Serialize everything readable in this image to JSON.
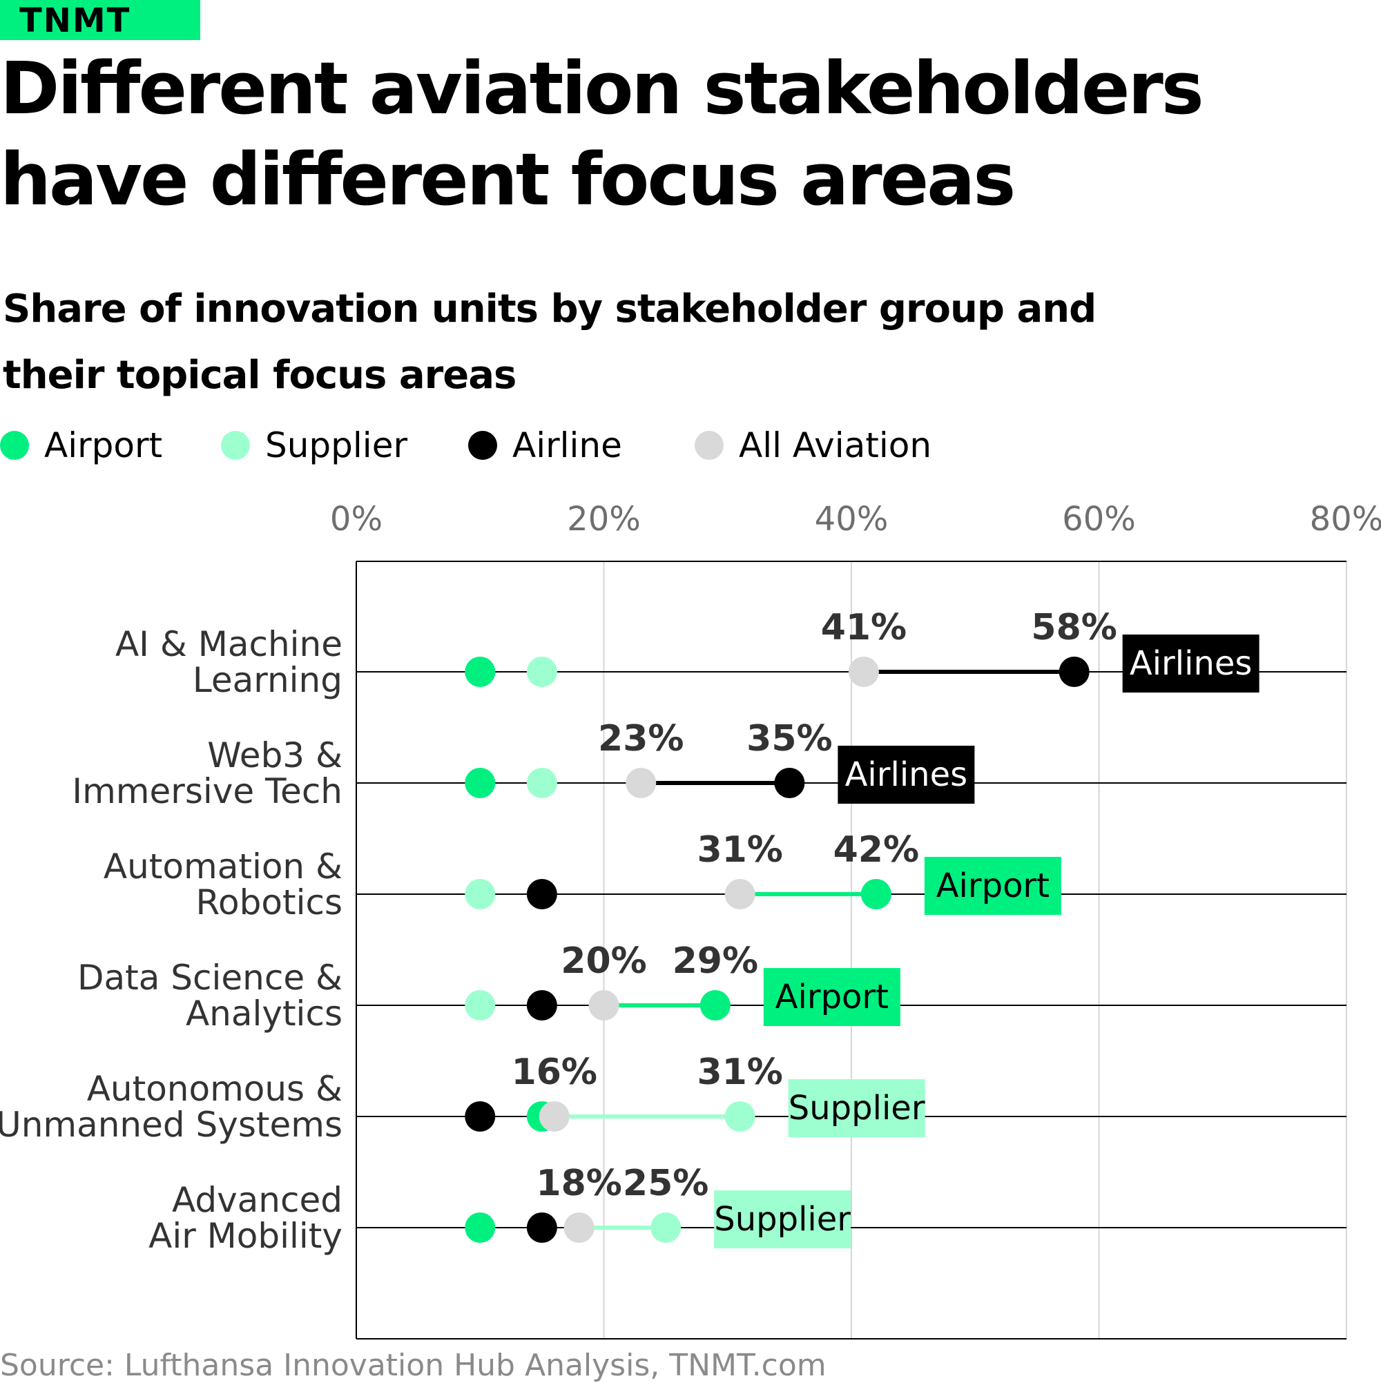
{
  "brand": {
    "logo_text": "TNMT"
  },
  "title": "Different aviation stakeholders have different focus areas",
  "subtitle": "Share of innovation units by stakeholder group and their topical focus areas",
  "legend": [
    {
      "label": "Airport",
      "color": "#00f07f"
    },
    {
      "label": "Supplier",
      "color": "#9dffcf"
    },
    {
      "label": "Airline",
      "color": "#000000"
    },
    {
      "label": "All Aviation",
      "color": "#d9d9d9"
    }
  ],
  "source": "Source: Lufthansa Innovation Hub Analysis, TNMT.com",
  "chart_data": {
    "type": "scatter",
    "subtype": "dot-plot",
    "x_ticks": [
      "0%",
      "20%",
      "40%",
      "60%",
      "80%"
    ],
    "xlim": [
      0,
      80
    ],
    "grid": true,
    "legend_position": "top",
    "series_colors": {
      "Airport": "#00f07f",
      "Supplier": "#9dffcf",
      "Airline": "#000000",
      "All Aviation": "#d9d9d9"
    },
    "categories": [
      "AI & Machine Learning",
      "Web3 & Immersive Tech",
      "Automation & Robotics",
      "Data Science & Analytics",
      "Autonomous & Unmanned Systems",
      "Advanced Air Mobility"
    ],
    "category_lines": [
      [
        "AI & Machine",
        "Learning"
      ],
      [
        "Web3 &",
        "Immersive Tech"
      ],
      [
        "Automation &",
        "Robotics"
      ],
      [
        "Data Science &",
        "Analytics"
      ],
      [
        "Autonomous &",
        "Unmanned Systems"
      ],
      [
        "Advanced",
        "Air Mobility"
      ]
    ],
    "series": [
      {
        "name": "Airport",
        "values": [
          10,
          10,
          42,
          29,
          15,
          10
        ]
      },
      {
        "name": "Supplier",
        "values": [
          15,
          15,
          10,
          10,
          31,
          25
        ]
      },
      {
        "name": "Airline",
        "values": [
          58,
          35,
          15,
          15,
          10,
          15
        ]
      },
      {
        "name": "All Aviation",
        "values": [
          41,
          23,
          31,
          20,
          16,
          18
        ]
      }
    ],
    "highlights": [
      {
        "category": "AI & Machine Learning",
        "series": "Airline",
        "from": 41,
        "to": 58,
        "from_label": "41%",
        "to_label": "58%",
        "tag": "Airlines",
        "tag_bg": "#000000",
        "tag_color": "#ffffff"
      },
      {
        "category": "Web3 & Immersive Tech",
        "series": "Airline",
        "from": 23,
        "to": 35,
        "from_label": "23%",
        "to_label": "35%",
        "tag": "Airlines",
        "tag_bg": "#000000",
        "tag_color": "#ffffff"
      },
      {
        "category": "Automation & Robotics",
        "series": "Airport",
        "from": 31,
        "to": 42,
        "from_label": "31%",
        "to_label": "42%",
        "tag": "Airport",
        "tag_bg": "#00f07f",
        "tag_color": "#000000"
      },
      {
        "category": "Data Science & Analytics",
        "series": "Airport",
        "from": 20,
        "to": 29,
        "from_label": "20%",
        "to_label": "29%",
        "tag": "Airport",
        "tag_bg": "#00f07f",
        "tag_color": "#000000"
      },
      {
        "category": "Autonomous & Unmanned Systems",
        "series": "Supplier",
        "from": 16,
        "to": 31,
        "from_label": "16%",
        "to_label": "31%",
        "tag": "Supplier",
        "tag_bg": "#9dffcf",
        "tag_color": "#000000"
      },
      {
        "category": "Advanced Air Mobility",
        "series": "Supplier",
        "from": 18,
        "to": 25,
        "from_label": "18%",
        "to_label": "25%",
        "tag": "Supplier",
        "tag_bg": "#9dffcf",
        "tag_color": "#000000"
      }
    ]
  }
}
